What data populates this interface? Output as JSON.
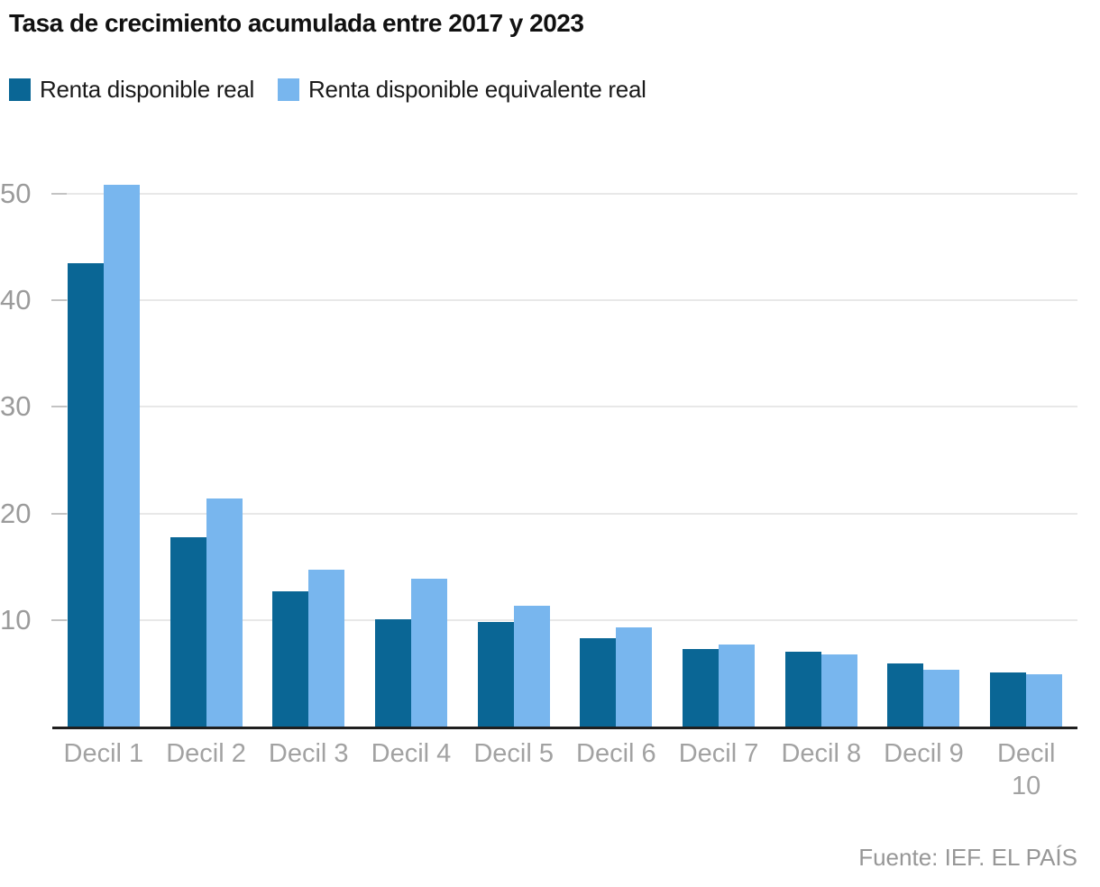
{
  "title": "Tasa de crecimiento acumulada entre 2017 y 2023",
  "source": "Fuente: IEF. EL PAÍS",
  "colors": {
    "series1": "#0a6695",
    "series2": "#78b6ee",
    "gridline": "#e8e8e8",
    "tick_dash": "#c3c3c3",
    "axis": "#1f1f1f",
    "axis_label_gray": "#a2a2a2"
  },
  "legend": [
    {
      "label": "Renta disponible real",
      "color": "#0a6695"
    },
    {
      "label": "Renta disponible equivalente real",
      "color": "#78b6ee"
    }
  ],
  "chart_data": {
    "type": "bar",
    "title": "Tasa de crecimiento acumulada entre 2017 y 2023",
    "categories": [
      "Decil 1",
      "Decil 2",
      "Decil 3",
      "Decil 4",
      "Decil 5",
      "Decil 6",
      "Decil 7",
      "Decil 8",
      "Decil 9",
      "Decil 10"
    ],
    "series": [
      {
        "name": "Renta disponible real",
        "color": "#0a6695",
        "values": [
          43.5,
          17.8,
          12.7,
          10.1,
          9.8,
          8.3,
          7.3,
          7.0,
          5.9,
          5.1
        ]
      },
      {
        "name": "Renta disponible equivalente real",
        "color": "#78b6ee",
        "values": [
          50.8,
          21.4,
          14.7,
          13.9,
          11.3,
          9.3,
          7.7,
          6.8,
          5.3,
          4.9
        ]
      }
    ],
    "xlabel": "",
    "ylabel": "",
    "yticks": [
      10,
      20,
      30,
      40,
      50
    ],
    "ylim": [
      0,
      52.1
    ],
    "grid": true,
    "legend_position": "top-left",
    "source": "Fuente: IEF. EL PAÍS"
  }
}
